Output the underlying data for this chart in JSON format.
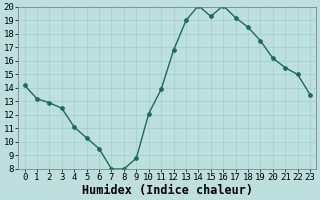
{
  "x": [
    0,
    1,
    2,
    3,
    4,
    5,
    6,
    7,
    8,
    9,
    10,
    11,
    12,
    13,
    14,
    15,
    16,
    17,
    18,
    19,
    20,
    21,
    22,
    23
  ],
  "y": [
    14.2,
    13.2,
    12.9,
    12.5,
    11.1,
    10.3,
    9.5,
    8.0,
    8.0,
    8.8,
    12.1,
    13.9,
    16.8,
    19.0,
    20.1,
    19.3,
    20.1,
    19.2,
    18.5,
    17.5,
    16.2,
    15.5,
    15.0,
    13.5
  ],
  "line_color": "#1a6b5a",
  "marker_color": "#1a6b5a",
  "bg_color": "#bde0de",
  "grid_color": "#9dcfcd",
  "xlabel": "Humidex (Indice chaleur)",
  "ylim": [
    8,
    20
  ],
  "xlim": [
    -0.5,
    23.5
  ],
  "yticks": [
    8,
    9,
    10,
    11,
    12,
    13,
    14,
    15,
    16,
    17,
    18,
    19,
    20
  ],
  "xticks": [
    0,
    1,
    2,
    3,
    4,
    5,
    6,
    7,
    8,
    9,
    10,
    11,
    12,
    13,
    14,
    15,
    16,
    17,
    18,
    19,
    20,
    21,
    22,
    23
  ],
  "tick_fontsize": 6.5,
  "xlabel_fontsize": 8.5,
  "linewidth": 1.0,
  "markersize": 2.8
}
